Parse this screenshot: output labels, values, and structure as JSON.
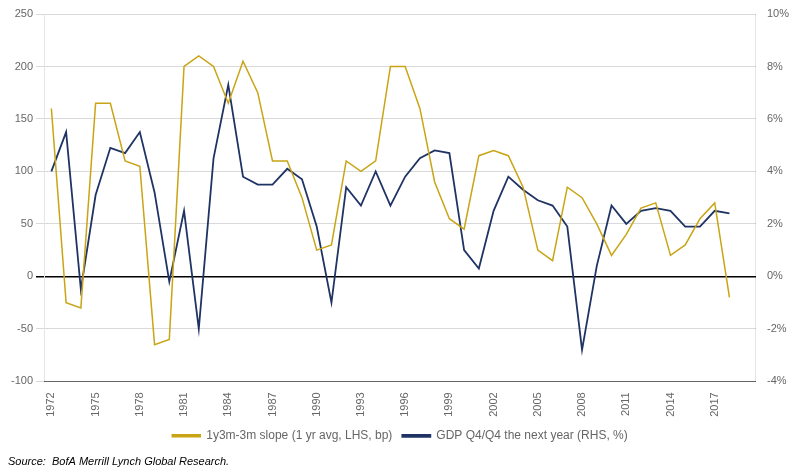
{
  "chart_data": {
    "type": "line",
    "x": [
      1972,
      1973,
      1974,
      1975,
      1976,
      1977,
      1978,
      1979,
      1980,
      1981,
      1982,
      1983,
      1984,
      1985,
      1986,
      1987,
      1988,
      1989,
      1990,
      1991,
      1992,
      1993,
      1994,
      1995,
      1996,
      1997,
      1998,
      1999,
      2000,
      2001,
      2002,
      2003,
      2004,
      2005,
      2006,
      2007,
      2008,
      2009,
      2010,
      2011,
      2012,
      2013,
      2014,
      2015,
      2016,
      2017,
      2018,
      2019
    ],
    "series": [
      {
        "name": "1y3m-3m slope (1 yr avg, LHS, bp)",
        "color": "#C9A415",
        "values": [
          160,
          -25,
          -30,
          165,
          165,
          110,
          105,
          -65,
          -60,
          200,
          210,
          200,
          165,
          205,
          175,
          110,
          110,
          75,
          25,
          30,
          110,
          100,
          110,
          200,
          200,
          160,
          90,
          55,
          45,
          115,
          120,
          115,
          85,
          25,
          15,
          85,
          75,
          50,
          20,
          40,
          65,
          70,
          20,
          30,
          55,
          70,
          -20,
          null
        ]
      },
      {
        "name": "GDP Q4/Q4 the next year (RHS, %)",
        "color": "#1F3364",
        "axis": "y2",
        "values": [
          4.0,
          5.5,
          -0.5,
          3.1,
          4.9,
          4.7,
          5.5,
          3.2,
          -0.2,
          2.5,
          -2.0,
          4.5,
          7.3,
          3.8,
          3.5,
          3.5,
          4.1,
          3.7,
          1.9,
          -1.0,
          3.4,
          2.7,
          4.0,
          2.7,
          3.8,
          4.5,
          4.8,
          4.7,
          1.0,
          0.3,
          2.5,
          3.8,
          3.3,
          2.9,
          2.7,
          1.9,
          -2.8,
          0.4,
          2.7,
          2.0,
          2.5,
          2.6,
          2.5,
          1.9,
          1.9,
          2.5,
          2.4,
          null
        ]
      }
    ],
    "xlim": [
      1971.5,
      2019.8
    ],
    "xticks": [
      1972,
      1975,
      1978,
      1981,
      1984,
      1987,
      1990,
      1993,
      1996,
      1999,
      2002,
      2005,
      2008,
      2011,
      2014,
      2017
    ],
    "ylim": [
      -100,
      250
    ],
    "yticks": [
      -100,
      -50,
      0,
      50,
      100,
      150,
      200,
      250
    ],
    "y2lim": [
      -4,
      10
    ],
    "y2ticks": [
      {
        "value": -4,
        "label": "-4%"
      },
      {
        "value": -2,
        "label": "-2%"
      },
      {
        "value": 0,
        "label": "0%"
      },
      {
        "value": 2,
        "label": "2%"
      },
      {
        "value": 4,
        "label": "4%"
      },
      {
        "value": 6,
        "label": "6%"
      },
      {
        "value": 8,
        "label": "8%"
      },
      {
        "value": 10,
        "label": "10%"
      }
    ],
    "grid": true,
    "legend": "bottom",
    "annotations": [
      "Source:  BofA Merrill Lynch Global Research."
    ]
  }
}
